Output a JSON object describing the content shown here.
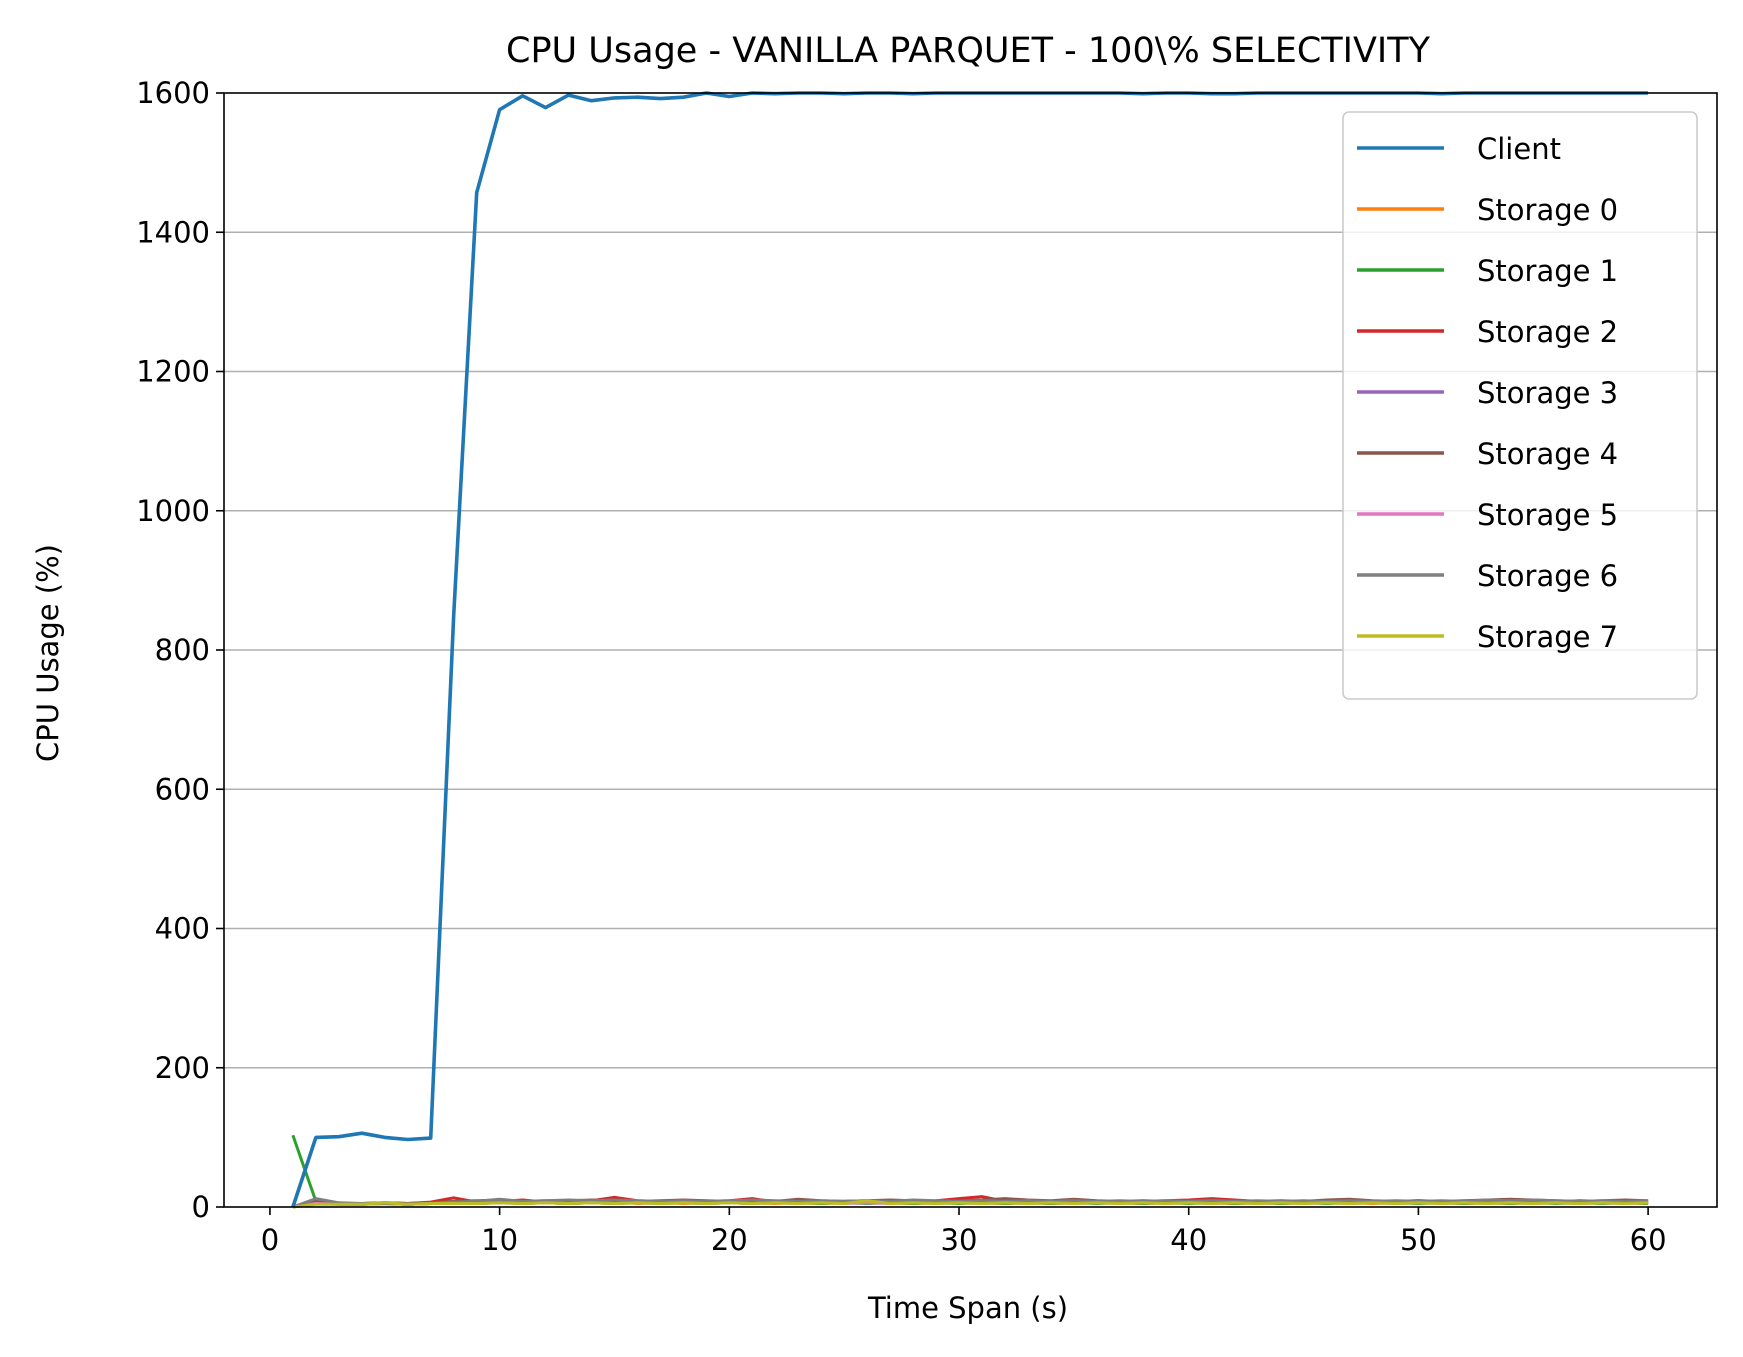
{
  "chart_data": {
    "type": "line",
    "title": "CPU Usage - VANILLA PARQUET - 100\\% SELECTIVITY",
    "xlabel": "Time Span (s)",
    "ylabel": "CPU Usage (%)",
    "xlim": [
      -2,
      63
    ],
    "ylim": [
      0,
      1600
    ],
    "xticks": [
      0,
      10,
      20,
      30,
      40,
      50,
      60
    ],
    "yticks": [
      0,
      200,
      400,
      600,
      800,
      1000,
      1200,
      1400,
      1600
    ],
    "grid": "horizontal",
    "legend_position": "top-right",
    "series": [
      {
        "name": "Client",
        "color": "#1f77b4",
        "x": [
          1,
          2,
          3,
          4,
          5,
          6,
          7,
          8,
          9,
          10,
          11,
          12,
          13,
          14,
          15,
          16,
          17,
          18,
          19,
          20,
          21,
          22,
          23,
          24,
          25,
          26,
          27,
          28,
          29,
          30,
          31,
          32,
          33,
          34,
          35,
          36,
          37,
          38,
          39,
          40,
          41,
          42,
          43,
          44,
          45,
          46,
          47,
          48,
          49,
          50,
          51,
          52,
          53,
          54,
          55,
          56,
          57,
          58,
          59,
          60
        ],
        "values": [
          0,
          100,
          101,
          106,
          100,
          97,
          99,
          850,
          1457,
          1576,
          1596,
          1579,
          1597,
          1589,
          1593,
          1594,
          1592,
          1594,
          1600,
          1595,
          1600,
          1599,
          1600,
          1600,
          1599,
          1600,
          1600,
          1599,
          1600,
          1600,
          1600,
          1600,
          1600,
          1600,
          1600,
          1600,
          1600,
          1599,
          1600,
          1600,
          1599,
          1599,
          1600,
          1600,
          1600,
          1600,
          1600,
          1600,
          1600,
          1600,
          1599,
          1600,
          1600,
          1600,
          1600,
          1600,
          1600,
          1600,
          1600,
          1600
        ]
      },
      {
        "name": "Storage 0",
        "color": "#ff7f0e",
        "x": [
          1,
          2,
          3,
          4,
          5,
          6,
          7,
          8,
          9,
          10,
          11,
          12,
          13,
          14,
          15,
          16,
          17,
          18,
          19,
          20,
          21,
          22,
          23,
          24,
          25,
          26,
          27,
          28,
          29,
          30,
          31,
          32,
          33,
          34,
          35,
          36,
          37,
          38,
          39,
          40,
          41,
          42,
          43,
          44,
          45,
          46,
          47,
          48,
          49,
          50,
          51,
          52,
          53,
          54,
          55,
          56,
          57,
          58,
          59,
          60
        ],
        "values": [
          0,
          6,
          4,
          4,
          5,
          4,
          5,
          6,
          5,
          6,
          8,
          6,
          5,
          6,
          7,
          5,
          6,
          5,
          6,
          7,
          6,
          5,
          6,
          5,
          6,
          7,
          6,
          5,
          6,
          7,
          6,
          5,
          6,
          5,
          6,
          7,
          6,
          5,
          6,
          7,
          6,
          5,
          6,
          5,
          6,
          7,
          6,
          5,
          6,
          7,
          6,
          5,
          6,
          5,
          6,
          7,
          6,
          8,
          6,
          5
        ]
      },
      {
        "name": "Storage 1",
        "color": "#2ca02c",
        "x": [
          1,
          2,
          3,
          4,
          5,
          6,
          7,
          8,
          9,
          10,
          11,
          12,
          13,
          14,
          15,
          16,
          17,
          18,
          19,
          20,
          21,
          22,
          23,
          24,
          25,
          26,
          27,
          28,
          29,
          30,
          31,
          32,
          33,
          34,
          35,
          36,
          37,
          38,
          39,
          40,
          41,
          42,
          43,
          44,
          45,
          46,
          47,
          48,
          49,
          50,
          51,
          52,
          53,
          54,
          55,
          56,
          57,
          58,
          59,
          60
        ],
        "values": [
          103,
          8,
          4,
          4,
          5,
          4,
          5,
          6,
          5,
          6,
          5,
          6,
          5,
          6,
          5,
          6,
          5,
          6,
          5,
          6,
          5,
          8,
          6,
          5,
          6,
          5,
          6,
          5,
          6,
          5,
          6,
          5,
          6,
          5,
          6,
          5,
          6,
          5,
          6,
          5,
          6,
          5,
          6,
          5,
          6,
          5,
          6,
          8,
          6,
          5,
          6,
          5,
          6,
          5,
          6,
          5,
          6,
          5,
          6,
          5
        ]
      },
      {
        "name": "Storage 2",
        "color": "#d62728",
        "x": [
          1,
          2,
          3,
          4,
          5,
          6,
          7,
          8,
          9,
          10,
          11,
          12,
          13,
          14,
          15,
          16,
          17,
          18,
          19,
          20,
          21,
          22,
          23,
          24,
          25,
          26,
          27,
          28,
          29,
          30,
          31,
          32,
          33,
          34,
          35,
          36,
          37,
          38,
          39,
          40,
          41,
          42,
          43,
          44,
          45,
          46,
          47,
          48,
          49,
          50,
          51,
          52,
          53,
          54,
          55,
          56,
          57,
          58,
          59,
          60
        ],
        "values": [
          0,
          6,
          5,
          5,
          6,
          5,
          7,
          13,
          7,
          8,
          10,
          7,
          8,
          9,
          14,
          9,
          8,
          7,
          8,
          9,
          12,
          7,
          8,
          7,
          8,
          9,
          8,
          7,
          9,
          12,
          15,
          8,
          7,
          8,
          9,
          8,
          7,
          8,
          9,
          10,
          12,
          10,
          8,
          7,
          8,
          9,
          8,
          7,
          8,
          9,
          8,
          7,
          8,
          9,
          8,
          7,
          9,
          8,
          7,
          8
        ]
      },
      {
        "name": "Storage 3",
        "color": "#9467bd",
        "x": [
          1,
          2,
          3,
          4,
          5,
          6,
          7,
          8,
          9,
          10,
          11,
          12,
          13,
          14,
          15,
          16,
          17,
          18,
          19,
          20,
          21,
          22,
          23,
          24,
          25,
          26,
          27,
          28,
          29,
          30,
          31,
          32,
          33,
          34,
          35,
          36,
          37,
          38,
          39,
          40,
          41,
          42,
          43,
          44,
          45,
          46,
          47,
          48,
          49,
          50,
          51,
          52,
          53,
          54,
          55,
          56,
          57,
          58,
          59,
          60
        ],
        "values": [
          0,
          9,
          5,
          5,
          5,
          4,
          5,
          6,
          6,
          7,
          6,
          7,
          6,
          7,
          6,
          7,
          6,
          7,
          6,
          7,
          6,
          7,
          6,
          7,
          6,
          7,
          6,
          7,
          6,
          7,
          6,
          7,
          6,
          7,
          6,
          7,
          6,
          7,
          6,
          7,
          6,
          7,
          6,
          7,
          8,
          7,
          6,
          7,
          6,
          7,
          6,
          7,
          6,
          7,
          6,
          7,
          6,
          7,
          6,
          7
        ]
      },
      {
        "name": "Storage 4",
        "color": "#8c564b",
        "x": [
          1,
          2,
          3,
          4,
          5,
          6,
          7,
          8,
          9,
          10,
          11,
          12,
          13,
          14,
          15,
          16,
          17,
          18,
          19,
          20,
          21,
          22,
          23,
          24,
          25,
          26,
          27,
          28,
          29,
          30,
          31,
          32,
          33,
          34,
          35,
          36,
          37,
          38,
          39,
          40,
          41,
          42,
          43,
          44,
          45,
          46,
          47,
          48,
          49,
          50,
          51,
          52,
          53,
          54,
          55,
          56,
          57,
          58,
          59,
          60
        ],
        "values": [
          0,
          8,
          5,
          5,
          6,
          5,
          6,
          8,
          9,
          10,
          8,
          9,
          9,
          10,
          9,
          8,
          9,
          10,
          9,
          8,
          9,
          8,
          11,
          9,
          8,
          9,
          10,
          9,
          8,
          9,
          10,
          12,
          10,
          9,
          11,
          9,
          8,
          9,
          8,
          9,
          10,
          9,
          8,
          9,
          8,
          10,
          11,
          9,
          8,
          9,
          8,
          9,
          10,
          11,
          10,
          9,
          8,
          9,
          10,
          9
        ]
      },
      {
        "name": "Storage 5",
        "color": "#e377c2",
        "x": [
          1,
          2,
          3,
          4,
          5,
          6,
          7,
          8,
          9,
          10,
          11,
          12,
          13,
          14,
          15,
          16,
          17,
          18,
          19,
          20,
          21,
          22,
          23,
          24,
          25,
          26,
          27,
          28,
          29,
          30,
          31,
          32,
          33,
          34,
          35,
          36,
          37,
          38,
          39,
          40,
          41,
          42,
          43,
          44,
          45,
          46,
          47,
          48,
          49,
          50,
          51,
          52,
          53,
          54,
          55,
          56,
          57,
          58,
          59,
          60
        ],
        "values": [
          0,
          5,
          4,
          4,
          5,
          4,
          5,
          5,
          5,
          6,
          5,
          6,
          5,
          6,
          5,
          6,
          5,
          6,
          5,
          6,
          5,
          6,
          5,
          6,
          5,
          6,
          5,
          6,
          5,
          6,
          5,
          6,
          5,
          6,
          5,
          6,
          5,
          6,
          5,
          6,
          5,
          6,
          5,
          6,
          5,
          6,
          5,
          6,
          5,
          6,
          5,
          6,
          5,
          6,
          5,
          6,
          5,
          6,
          5,
          6
        ]
      },
      {
        "name": "Storage 6",
        "color": "#7f7f7f",
        "x": [
          1,
          2,
          3,
          4,
          5,
          6,
          7,
          8,
          9,
          10,
          11,
          12,
          13,
          14,
          15,
          16,
          17,
          18,
          19,
          20,
          21,
          22,
          23,
          24,
          25,
          26,
          27,
          28,
          29,
          30,
          31,
          32,
          33,
          34,
          35,
          36,
          37,
          38,
          39,
          40,
          41,
          42,
          43,
          44,
          45,
          46,
          47,
          48,
          49,
          50,
          51,
          52,
          53,
          54,
          55,
          56,
          57,
          58,
          59,
          60
        ],
        "values": [
          0,
          12,
          6,
          5,
          5,
          4,
          5,
          7,
          8,
          11,
          8,
          9,
          10,
          9,
          10,
          9,
          8,
          9,
          8,
          9,
          10,
          9,
          8,
          9,
          8,
          9,
          8,
          10,
          9,
          8,
          9,
          8,
          9,
          8,
          9,
          8,
          9,
          8,
          9,
          8,
          9,
          8,
          9,
          8,
          9,
          8,
          9,
          8,
          9,
          8,
          9,
          8,
          10,
          9,
          10,
          9,
          8,
          9,
          8,
          9
        ]
      },
      {
        "name": "Storage 7",
        "color": "#bcbd22",
        "x": [
          1,
          2,
          3,
          4,
          5,
          6,
          7,
          8,
          9,
          10,
          11,
          12,
          13,
          14,
          15,
          16,
          17,
          18,
          19,
          20,
          21,
          22,
          23,
          24,
          25,
          26,
          27,
          28,
          29,
          30,
          31,
          32,
          33,
          34,
          35,
          36,
          37,
          38,
          39,
          40,
          41,
          42,
          43,
          44,
          45,
          46,
          47,
          48,
          49,
          50,
          51,
          52,
          53,
          54,
          55,
          56,
          57,
          58,
          59,
          60
        ],
        "values": [
          0,
          4,
          4,
          4,
          6,
          4,
          5,
          5,
          5,
          6,
          5,
          6,
          5,
          6,
          5,
          6,
          5,
          6,
          5,
          6,
          5,
          6,
          5,
          6,
          5,
          9,
          5,
          6,
          5,
          6,
          5,
          6,
          5,
          6,
          5,
          6,
          5,
          6,
          5,
          6,
          5,
          6,
          5,
          6,
          5,
          6,
          5,
          6,
          5,
          6,
          5,
          6,
          5,
          6,
          5,
          6,
          5,
          6,
          5,
          6
        ]
      }
    ]
  }
}
